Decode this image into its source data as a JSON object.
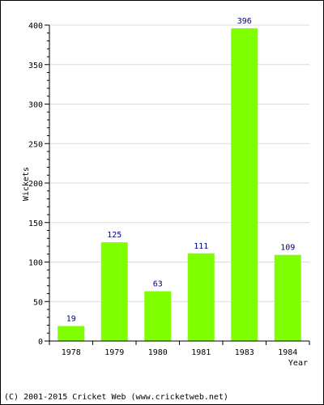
{
  "chart_data": {
    "type": "bar",
    "title": "",
    "xlabel": "Year",
    "ylabel": "Wickets",
    "categories": [
      "1978",
      "1979",
      "1980",
      "1981",
      "1983",
      "1984"
    ],
    "values": [
      19,
      125,
      63,
      111,
      396,
      109
    ],
    "ylim": [
      0,
      400
    ],
    "yticks": [
      0,
      50,
      100,
      150,
      200,
      250,
      300,
      350,
      400
    ],
    "grid": true,
    "bar_color": "#80ff00",
    "label_color": "#000080"
  },
  "footer": {
    "copyright": "(C) 2001-2015 Cricket Web (www.cricketweb.net)"
  }
}
